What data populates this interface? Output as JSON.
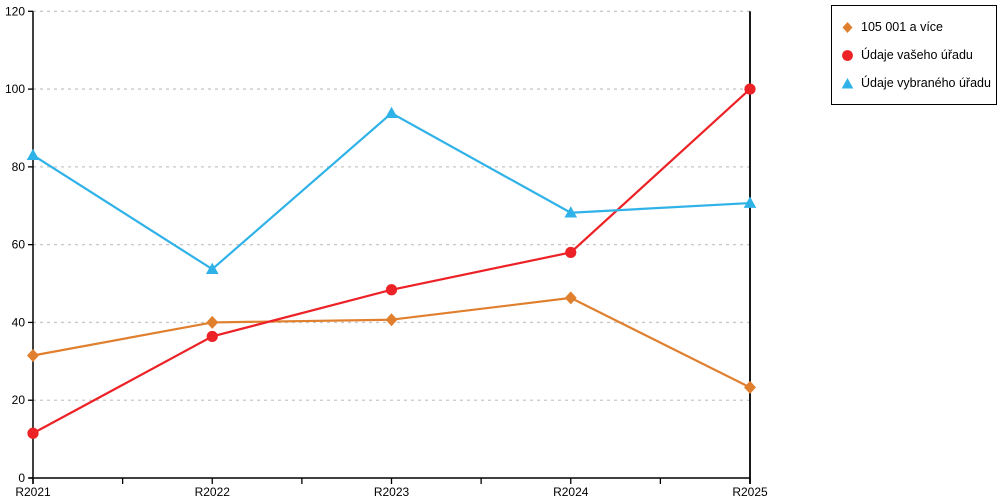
{
  "chart_data": {
    "type": "line",
    "title": "",
    "xlabel": "",
    "ylabel": "",
    "x": [
      "R2021",
      "R2022",
      "R2023",
      "R2024",
      "R2025"
    ],
    "series": [
      {
        "name": "105 001 a více",
        "marker": "diamond",
        "color": "#E0802E",
        "values": [
          31.5,
          40.0,
          40.7,
          46.3,
          23.3
        ]
      },
      {
        "name": "Údaje vašeho úřadu",
        "marker": "circle",
        "color": "#EC2227",
        "values": [
          11.5,
          36.4,
          48.4,
          58.0,
          100.0
        ]
      },
      {
        "name": "Údaje vybraného úřadu",
        "marker": "triangle",
        "color": "#2FB2E8",
        "values": [
          83.0,
          53.7,
          93.8,
          68.2,
          70.7
        ]
      }
    ],
    "ylim": [
      0,
      120
    ],
    "yticks": [
      0,
      20,
      40,
      60,
      80,
      100,
      120
    ],
    "grid": "horizontal-dashed",
    "grid_color": "#c8c8c8",
    "axis_color": "#000000",
    "legend_position": "top-right-outside"
  }
}
